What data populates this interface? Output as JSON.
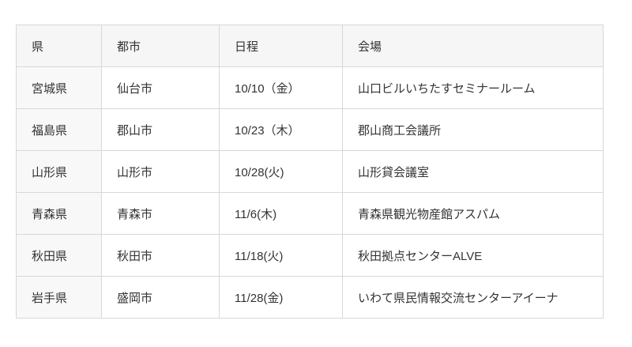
{
  "table": {
    "name": "seminar-schedule",
    "columns": [
      {
        "key": "prefecture",
        "label": "県"
      },
      {
        "key": "city",
        "label": "都市"
      },
      {
        "key": "date",
        "label": "日程"
      },
      {
        "key": "venue",
        "label": "会場"
      }
    ],
    "rows": [
      {
        "prefecture": "宮城県",
        "city": "仙台市",
        "date": "10/10（金）",
        "venue": "山口ビルいちたすセミナールーム"
      },
      {
        "prefecture": "福島県",
        "city": "郡山市",
        "date": "10/23（木）",
        "venue": "郡山商工会議所"
      },
      {
        "prefecture": "山形県",
        "city": "山形市",
        "date": "10/28(火)",
        "venue": "山形貸会議室"
      },
      {
        "prefecture": "青森県",
        "city": "青森市",
        "date": "11/6(木)",
        "venue": "青森県観光物産館アスパム"
      },
      {
        "prefecture": "秋田県",
        "city": "秋田市",
        "date": "11/18(火)",
        "venue": "秋田拠点センターALVE"
      },
      {
        "prefecture": "岩手県",
        "city": "盛岡市",
        "date": "11/28(金)",
        "venue": "いわて県民情報交流センターアイーナ"
      }
    ]
  },
  "colors": {
    "page_bg": "#ffffff",
    "header_bg": "#f6f6f6",
    "row_header_bg": "#f8f8f8",
    "border": "#d8d8d8",
    "text": "#333333"
  }
}
